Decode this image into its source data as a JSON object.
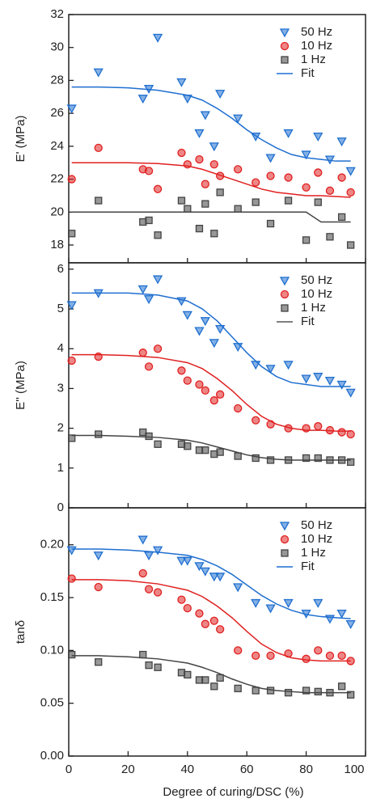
{
  "chart_data": [
    {
      "type": "scatter",
      "ylabel": "E' (MPa)",
      "x": [
        1,
        10,
        25,
        27,
        30,
        38,
        40,
        44,
        46,
        49,
        51,
        57,
        63,
        68,
        74,
        80,
        84,
        88,
        92,
        95
      ],
      "xlim": [
        0,
        100
      ],
      "xticks": [
        0,
        20,
        40,
        60,
        80,
        100
      ],
      "ylim": [
        16.92,
        32
      ],
      "yticks": [
        18,
        20,
        22,
        24,
        26,
        28,
        30,
        32
      ],
      "series": [
        {
          "name": "50 Hz",
          "color": "#1f6fd0",
          "marker": "triangle-down",
          "values": [
            26.3,
            28.5,
            26.9,
            27.5,
            30.6,
            27.9,
            26.9,
            24.8,
            25.9,
            24.0,
            27.2,
            25.7,
            24.6,
            23.3,
            24.8,
            23.5,
            24.6,
            23.2,
            24.3,
            22.5
          ]
        },
        {
          "name": "10 Hz",
          "color": "#e02020",
          "marker": "circle",
          "values": [
            22.0,
            23.9,
            22.6,
            22.5,
            21.4,
            23.6,
            22.9,
            23.2,
            21.7,
            22.9,
            22.2,
            22.6,
            21.8,
            22.2,
            22.1,
            21.5,
            22.4,
            21.3,
            22.1,
            21.2
          ]
        },
        {
          "name": "1 Hz",
          "color": "#444444",
          "marker": "square",
          "values": [
            18.7,
            20.7,
            19.4,
            19.5,
            18.6,
            20.7,
            20.2,
            19.0,
            20.5,
            18.7,
            21.2,
            20.2,
            20.6,
            19.3,
            20.7,
            18.3,
            20.6,
            18.5,
            19.7,
            18.0
          ]
        }
      ],
      "fit": {
        "name": "Fit",
        "color": "#1f6fd0",
        "x": [
          1,
          10,
          20,
          30,
          40,
          45,
          50,
          55,
          60,
          65,
          70,
          75,
          80,
          85,
          90,
          95
        ],
        "curves": [
          [
            27.6,
            27.6,
            27.55,
            27.4,
            27.1,
            26.8,
            26.3,
            25.7,
            25.0,
            24.4,
            23.9,
            23.5,
            23.3,
            23.2,
            23.1,
            23.1
          ],
          [
            23.0,
            23.0,
            23.0,
            22.95,
            22.8,
            22.6,
            22.3,
            22.0,
            21.7,
            21.4,
            21.2,
            21.1,
            21.0,
            21.0,
            20.95,
            20.9
          ],
          [
            20.0,
            20.0,
            20.0,
            20.0,
            20.0,
            20.0,
            20.0,
            20.0,
            20.0,
            20.0,
            20.0,
            20.0,
            20.0,
            19.4,
            19.4,
            19.4
          ]
        ]
      }
    },
    {
      "type": "scatter",
      "ylabel": "E'' (MPa)",
      "x": [
        1,
        10,
        25,
        27,
        30,
        38,
        40,
        44,
        46,
        49,
        51,
        57,
        63,
        68,
        74,
        80,
        84,
        88,
        92,
        95
      ],
      "xlim": [
        0,
        100
      ],
      "xticks": [
        0,
        20,
        40,
        60,
        80,
        100
      ],
      "ylim": [
        0,
        6.16
      ],
      "yticks": [
        0,
        1,
        2,
        3,
        4,
        5,
        6
      ],
      "series": [
        {
          "name": "50 Hz",
          "color": "#1f6fd0",
          "marker": "triangle-down",
          "values": [
            5.1,
            5.4,
            5.5,
            5.25,
            5.75,
            5.2,
            4.85,
            4.45,
            4.7,
            4.15,
            4.5,
            4.05,
            3.6,
            3.5,
            3.6,
            3.25,
            3.3,
            3.2,
            3.1,
            2.9
          ]
        },
        {
          "name": "10 Hz",
          "color": "#e02020",
          "marker": "circle",
          "values": [
            3.7,
            3.8,
            3.9,
            3.55,
            4.0,
            3.45,
            3.2,
            3.1,
            2.95,
            2.7,
            2.85,
            2.5,
            2.2,
            2.1,
            2.0,
            2.0,
            2.05,
            1.95,
            1.9,
            1.85
          ]
        },
        {
          "name": "1 Hz",
          "color": "#444444",
          "marker": "square",
          "values": [
            1.75,
            1.85,
            1.9,
            1.8,
            1.6,
            1.6,
            1.55,
            1.45,
            1.45,
            1.35,
            1.4,
            1.3,
            1.25,
            1.2,
            1.2,
            1.25,
            1.25,
            1.2,
            1.2,
            1.15
          ]
        }
      ],
      "fit": {
        "name": "Fit",
        "color": "#555555",
        "x": [
          1,
          10,
          20,
          30,
          40,
          45,
          50,
          55,
          60,
          65,
          70,
          75,
          80,
          85,
          90,
          95
        ],
        "curves": [
          [
            5.4,
            5.4,
            5.4,
            5.35,
            5.2,
            5.0,
            4.7,
            4.3,
            3.9,
            3.55,
            3.3,
            3.15,
            3.1,
            3.05,
            3.05,
            3.05
          ],
          [
            3.85,
            3.85,
            3.83,
            3.78,
            3.65,
            3.5,
            3.25,
            2.95,
            2.6,
            2.3,
            2.1,
            2.0,
            1.95,
            1.95,
            1.93,
            1.93
          ],
          [
            1.82,
            1.82,
            1.8,
            1.77,
            1.7,
            1.63,
            1.53,
            1.43,
            1.33,
            1.26,
            1.22,
            1.2,
            1.2,
            1.2,
            1.2,
            1.2
          ]
        ]
      }
    },
    {
      "type": "scatter",
      "ylabel": "tanδ",
      "xlabel": "Degree of curing/DSC (%)",
      "x": [
        1,
        10,
        25,
        27,
        30,
        38,
        40,
        44,
        46,
        49,
        51,
        57,
        63,
        68,
        74,
        80,
        84,
        88,
        92,
        95
      ],
      "xlim": [
        0,
        100
      ],
      "xticks": [
        0,
        20,
        40,
        60,
        80,
        100
      ],
      "ylim": [
        0,
        0.235
      ],
      "yticks": [
        {
          "value": 0,
          "label": "0.00"
        },
        0.05,
        {
          "value": 0.1,
          "label": "0.10"
        },
        0.15,
        {
          "value": 0.2,
          "label": "0.20"
        }
      ],
      "series": [
        {
          "name": "50 Hz",
          "color": "#1f6fd0",
          "marker": "triangle-down",
          "values": [
            0.195,
            0.19,
            0.205,
            0.19,
            0.195,
            0.185,
            0.185,
            0.18,
            0.175,
            0.17,
            0.17,
            0.16,
            0.145,
            0.14,
            0.145,
            0.135,
            0.145,
            0.13,
            0.135,
            0.125
          ]
        },
        {
          "name": "10 Hz",
          "color": "#e02020",
          "marker": "circle",
          "values": [
            0.168,
            0.16,
            0.173,
            0.158,
            0.155,
            0.148,
            0.14,
            0.135,
            0.125,
            0.128,
            0.12,
            0.1,
            0.095,
            0.095,
            0.097,
            0.092,
            0.1,
            0.095,
            0.095,
            0.09
          ]
        },
        {
          "name": "1 Hz",
          "color": "#444444",
          "marker": "square",
          "values": [
            0.096,
            0.089,
            0.096,
            0.086,
            0.084,
            0.079,
            0.077,
            0.072,
            0.072,
            0.066,
            0.074,
            0.064,
            0.062,
            0.062,
            0.06,
            0.062,
            0.061,
            0.06,
            0.066,
            0.058
          ]
        }
      ],
      "fit": {
        "name": "Fit",
        "color": "#1f6fd0",
        "x": [
          1,
          10,
          20,
          30,
          40,
          45,
          50,
          55,
          60,
          65,
          70,
          75,
          80,
          85,
          90,
          95
        ],
        "curves": [
          [
            0.196,
            0.196,
            0.195,
            0.193,
            0.19,
            0.186,
            0.18,
            0.172,
            0.162,
            0.152,
            0.144,
            0.138,
            0.134,
            0.132,
            0.131,
            0.13
          ],
          [
            0.167,
            0.167,
            0.166,
            0.163,
            0.157,
            0.151,
            0.142,
            0.131,
            0.118,
            0.106,
            0.098,
            0.093,
            0.091,
            0.09,
            0.09,
            0.09
          ],
          [
            0.095,
            0.095,
            0.094,
            0.092,
            0.088,
            0.084,
            0.079,
            0.073,
            0.068,
            0.064,
            0.062,
            0.061,
            0.06,
            0.06,
            0.06,
            0.06
          ]
        ]
      }
    }
  ]
}
